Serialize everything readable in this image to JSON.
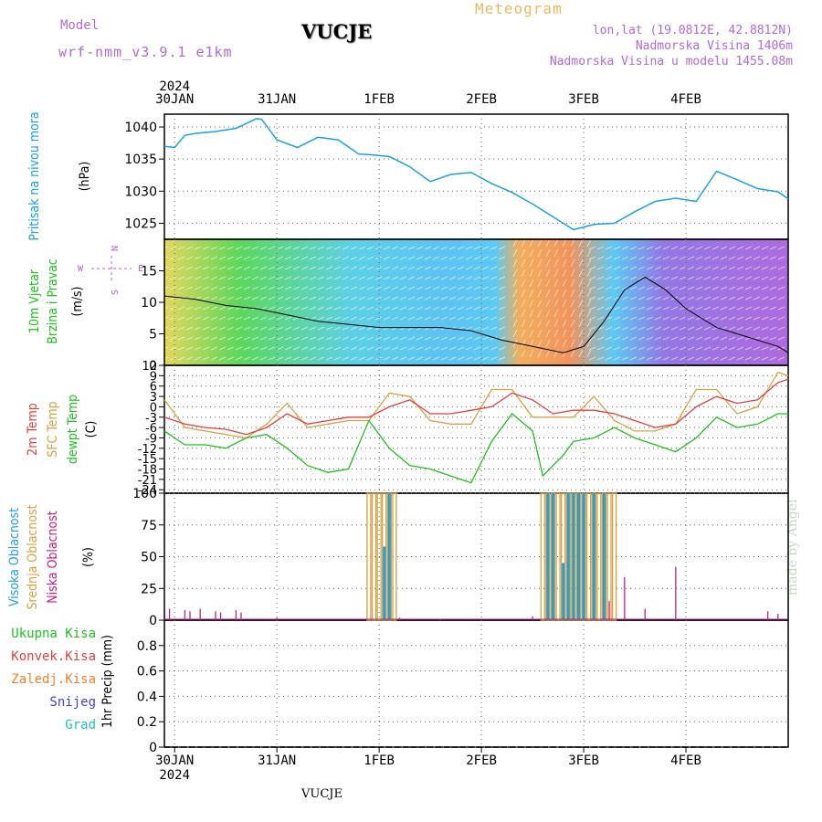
{
  "header": {
    "model_label": "Model",
    "model": "wrf-nmm_v3.9.1  e1km",
    "station": "VUCJE",
    "meteogram_label": "Meteogram",
    "coords": "lon,lat (19.0812E, 42.8812N)",
    "elevation": "Nadmorska Visina 1406m",
    "model_elevation": "Nadmorska Visina u modelu 1455.08m"
  },
  "footer": {
    "station": "VUCJE",
    "watermark": "made by Angel"
  },
  "time_axis": {
    "year": "2024",
    "days": [
      "30JAN",
      "31JAN",
      "1FEB",
      "2FEB",
      "3FEB",
      "4FEB"
    ],
    "range": [
      0,
      6.1
    ]
  },
  "colors": {
    "pressure": "#1ea0e0",
    "temp2m": "#e04040",
    "sfc_temp": "#d8a040",
    "dewpt": "#20c020",
    "high_cloud": "#20a0e0",
    "mid_cloud": "#d8a040",
    "low_cloud": "#c02080",
    "wind_speed": "#000000",
    "total_precip": "#20c020",
    "conv_precip": "#e04040",
    "frozen_precip": "#f08030",
    "snow": "#4040e0",
    "graupel": "#20c0c0",
    "wind_legend": "#b060d8"
  },
  "chart_data": [
    {
      "type": "line",
      "panel": "pressure",
      "ylabel_parts": [
        "Pritisak na nivou mora",
        "(hPa)"
      ],
      "yticks": [
        1025,
        1030,
        1035,
        1040
      ],
      "ylim": [
        1022.5,
        1042
      ],
      "grid": true,
      "series": [
        {
          "name": "Pritisak na nivou mora",
          "x": [
            0,
            0.1,
            0.2,
            0.3,
            0.5,
            0.7,
            0.9,
            0.95,
            1.1,
            1.3,
            1.5,
            1.7,
            1.9,
            2.0,
            2.2,
            2.4,
            2.6,
            2.8,
            3.0,
            3.2,
            3.4,
            3.6,
            3.8,
            4.0,
            4.2,
            4.4,
            4.6,
            4.8,
            5.0,
            5.2,
            5.4,
            5.6,
            5.8,
            6.0,
            6.1
          ],
          "values": [
            1037.0,
            1036.8,
            1038.7,
            1039.0,
            1039.3,
            1039.8,
            1041.3,
            1041.2,
            1038.0,
            1036.8,
            1038.4,
            1038.0,
            1035.8,
            1035.7,
            1035.4,
            1033.8,
            1031.5,
            1032.6,
            1032.9,
            1031.2,
            1029.8,
            1028.0,
            1026.0,
            1024.0,
            1024.8,
            1025.0,
            1026.8,
            1028.4,
            1028.9,
            1028.4,
            1033.1,
            1031.8,
            1030.4,
            1029.9,
            1028.8
          ]
        }
      ]
    },
    {
      "type": "line",
      "panel": "wind",
      "ylabel_parts": [
        "10m Vjetar",
        "Brzina i Pravac",
        "(m/s)"
      ],
      "yticks": [
        0,
        5,
        10,
        15
      ],
      "ylim": [
        0,
        20
      ],
      "grid": true,
      "compass": [
        "N",
        "W",
        "E",
        "S"
      ],
      "series": [
        {
          "name": "Brzina",
          "x": [
            0,
            0.3,
            0.6,
            0.9,
            1.2,
            1.5,
            1.8,
            2.1,
            2.4,
            2.7,
            3.0,
            3.3,
            3.6,
            3.9,
            4.1,
            4.3,
            4.5,
            4.7,
            4.9,
            5.1,
            5.4,
            5.7,
            6.0,
            6.1
          ],
          "values": [
            11,
            10.5,
            9.5,
            9,
            8,
            7,
            6.5,
            6,
            6,
            6,
            5.5,
            4,
            3,
            2,
            3,
            7,
            12,
            14,
            12,
            9,
            6,
            4.5,
            3,
            2
          ]
        }
      ]
    },
    {
      "type": "line",
      "panel": "temperature",
      "ylabel_parts": [
        "2m Temp",
        "SFC Temp",
        "dewpt Temp",
        "(C)"
      ],
      "yticks": [
        -24,
        -21,
        -18,
        -15,
        -12,
        -9,
        -6,
        -3,
        0,
        3,
        6,
        9
      ],
      "yticks_top": "12",
      "ylim": [
        -25,
        12
      ],
      "grid": true,
      "series": [
        {
          "name": "2m Temp",
          "x": [
            0,
            0.2,
            0.4,
            0.6,
            0.8,
            1.0,
            1.2,
            1.4,
            1.6,
            1.8,
            2.0,
            2.2,
            2.4,
            2.6,
            2.8,
            3.0,
            3.2,
            3.4,
            3.6,
            3.8,
            4.0,
            4.2,
            4.4,
            4.6,
            4.8,
            5.0,
            5.2,
            5.4,
            5.6,
            5.8,
            6.0,
            6.1
          ],
          "values": [
            -3,
            -5,
            -6,
            -6.5,
            -8,
            -6,
            -2,
            -5,
            -4,
            -3,
            -3,
            0,
            2,
            -2,
            -2,
            -1,
            0,
            4,
            2,
            -2,
            -1,
            -1,
            -2,
            -4,
            -6,
            -5,
            0,
            3,
            1,
            2,
            7,
            8
          ]
        },
        {
          "name": "SFC Temp",
          "x": [
            0,
            0.2,
            0.4,
            0.6,
            0.8,
            1.0,
            1.2,
            1.4,
            1.6,
            1.8,
            2.0,
            2.2,
            2.4,
            2.6,
            2.8,
            3.0,
            3.2,
            3.4,
            3.6,
            3.8,
            4.0,
            4.2,
            4.4,
            4.6,
            4.8,
            5.0,
            5.2,
            5.4,
            5.6,
            5.8,
            6.0,
            6.1
          ],
          "values": [
            2,
            -6,
            -7,
            -8,
            -9,
            -5,
            1,
            -6,
            -5,
            -4,
            -4,
            4,
            3,
            -4,
            -5,
            -5,
            5,
            5,
            -3,
            -3,
            -3,
            3,
            -4,
            -7,
            -7,
            -5,
            5,
            5,
            -2,
            0,
            10,
            9
          ]
        },
        {
          "name": "dewpt Temp",
          "x": [
            0,
            0.2,
            0.4,
            0.6,
            0.8,
            1.0,
            1.2,
            1.4,
            1.6,
            1.8,
            2.0,
            2.2,
            2.4,
            2.6,
            2.8,
            3.0,
            3.2,
            3.4,
            3.6,
            3.7,
            3.8,
            3.9,
            4.0,
            4.2,
            4.4,
            4.6,
            4.8,
            5.0,
            5.2,
            5.4,
            5.6,
            5.8,
            6.0,
            6.1
          ],
          "values": [
            -7,
            -11,
            -11,
            -12,
            -9,
            -8,
            -12,
            -17,
            -19,
            -18,
            -4,
            -12,
            -17,
            -18,
            -20,
            -22,
            -10,
            -2,
            -7,
            -20,
            -17,
            -14,
            -10,
            -9,
            -6,
            -9,
            -11,
            -13,
            -9,
            -3,
            -6,
            -5,
            -2,
            -2
          ]
        }
      ]
    },
    {
      "type": "bar",
      "panel": "clouds",
      "ylabel_parts": [
        "Visoka Oblacnost",
        "Srednja Oblacnost",
        "Niska Oblacnost",
        "(%)"
      ],
      "yticks": [
        0,
        25,
        50,
        75,
        100
      ],
      "ylim": [
        0,
        100
      ],
      "grid": true,
      "series": [
        {
          "name": "Visoka Oblacnost",
          "x": [
            2.15,
            2.2,
            3.75,
            3.8,
            3.9,
            3.95,
            4.0,
            4.05,
            4.1,
            4.2,
            4.3
          ],
          "values": [
            58,
            100,
            100,
            100,
            45,
            100,
            100,
            100,
            100,
            100,
            100
          ]
        },
        {
          "name": "Srednja Oblacnost",
          "x": [
            2.0,
            2.05,
            2.1,
            2.15,
            2.2,
            2.25,
            3.7,
            3.75,
            3.8,
            3.85,
            3.9,
            3.95,
            4.0,
            4.05,
            4.1,
            4.15,
            4.2,
            4.25,
            4.3,
            4.35,
            4.4
          ],
          "values": [
            100,
            100,
            100,
            100,
            100,
            100,
            100,
            100,
            100,
            100,
            100,
            100,
            100,
            100,
            100,
            100,
            100,
            100,
            100,
            100,
            100
          ]
        },
        {
          "name": "Niska Oblacnost",
          "x": [
            0.05,
            0.2,
            0.25,
            0.35,
            0.5,
            0.55,
            0.7,
            0.75,
            1.1,
            2.3,
            2.7,
            3.6,
            4.35,
            4.5,
            4.7,
            5.0,
            5.9,
            6.0
          ],
          "values": [
            9,
            8,
            7,
            9,
            7,
            6,
            8,
            6,
            2,
            2,
            1,
            3,
            15,
            34,
            9,
            42,
            7,
            5
          ]
        }
      ]
    },
    {
      "type": "bar",
      "panel": "precipitation",
      "ylabel_parts": [
        "1hr Precip (mm)"
      ],
      "legend": [
        "Ukupna  Kisa",
        "Konvek.Kisa",
        "Zaledj.Kisa",
        "Snijeg",
        "Grad"
      ],
      "yticks": [
        "0",
        "0.2",
        "0.4",
        "0.6",
        "0.8"
      ],
      "ylim": [
        0,
        1
      ],
      "grid": true,
      "series": []
    }
  ]
}
